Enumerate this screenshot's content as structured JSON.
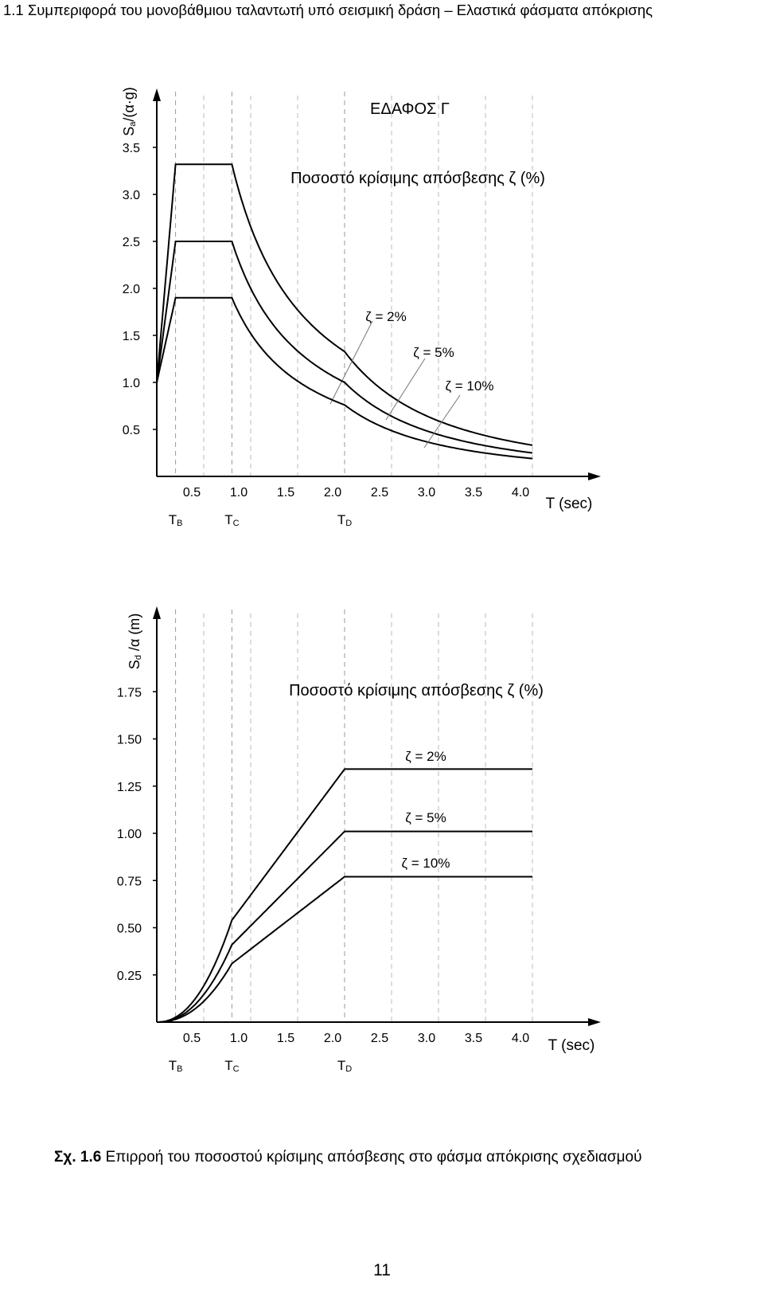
{
  "page": {
    "header": "1.1 Συμπεριφορά του μονοβάθμιου ταλαντωτή υπό σεισμική δράση – Ελαστικά φάσματα απόκρισης",
    "caption_label": "Σχ. 1.6",
    "caption_text": " Επιρροή του ποσοστού κρίσιμης απόσβεσης στο φάσμα απόκρισης σχεδιασμού",
    "page_number": "11"
  },
  "chart_data": [
    {
      "type": "line",
      "title": "ΕΔΑΦΟΣ Γ",
      "subtitle": "Ποσοστό κρίσιμης απόσβεσης ζ (%)",
      "ylabel_main": "S",
      "ylabel_sub": "a",
      "ylabel_rest": "/(α·g)",
      "xlabel": "T (sec)",
      "xlim": [
        0,
        4.0
      ],
      "ylim": [
        0,
        3.5
      ],
      "xticks": [
        "0.5",
        "1.0",
        "1.5",
        "2.0",
        "2.5",
        "3.0",
        "3.5",
        "4.0"
      ],
      "yticks": [
        "0.5",
        "1.0",
        "1.5",
        "2.0",
        "2.5",
        "3.0",
        "3.5"
      ],
      "vlines": [
        {
          "x": 0.2,
          "label_main": "T",
          "label_sub": "B"
        },
        {
          "x": 0.8,
          "label_main": "T",
          "label_sub": "C"
        },
        {
          "x": 2.0,
          "label_main": "T",
          "label_sub": "D"
        }
      ],
      "grid": false,
      "series": [
        {
          "name": "ζ = 2%",
          "x": [
            0,
            0.2,
            0.8,
            2.0,
            4.0
          ],
          "values": [
            1.0,
            3.32,
            3.32,
            1.33,
            0.34
          ]
        },
        {
          "name": "ζ = 5%",
          "x": [
            0,
            0.2,
            0.8,
            2.0,
            4.0
          ],
          "values": [
            1.0,
            2.5,
            2.5,
            1.0,
            0.25
          ]
        },
        {
          "name": "ζ = 10%",
          "x": [
            0,
            0.2,
            0.8,
            2.0,
            4.0
          ],
          "values": [
            1.0,
            1.9,
            1.9,
            0.76,
            0.19
          ]
        }
      ]
    },
    {
      "type": "line",
      "subtitle": "Ποσοστό κρίσιμης απόσβεσης ζ (%)",
      "ylabel_main": "S",
      "ylabel_sub": "d",
      "ylabel_rest": " /α (m)",
      "xlabel": "T (sec)",
      "xlim": [
        0,
        4.0
      ],
      "ylim": [
        0,
        1.75
      ],
      "xticks": [
        "0.5",
        "1.0",
        "1.5",
        "2.0",
        "2.5",
        "3.0",
        "3.5",
        "4.0"
      ],
      "yticks": [
        "0.25",
        "0.50",
        "0.75",
        "1.00",
        "1.25",
        "1.50",
        "1.75"
      ],
      "vlines": [
        {
          "x": 0.2,
          "label_main": "T",
          "label_sub": "B"
        },
        {
          "x": 0.8,
          "label_main": "T",
          "label_sub": "C"
        },
        {
          "x": 2.0,
          "label_main": "T",
          "label_sub": "D"
        }
      ],
      "grid": false,
      "series": [
        {
          "name": "ζ = 2%",
          "x": [
            0,
            0.2,
            0.8,
            2.0,
            4.0
          ],
          "values": [
            0.0,
            0.03,
            0.54,
            1.34,
            1.34
          ]
        },
        {
          "name": "ζ = 5%",
          "x": [
            0,
            0.2,
            0.8,
            2.0,
            4.0
          ],
          "values": [
            0.0,
            0.025,
            0.41,
            1.01,
            1.01
          ]
        },
        {
          "name": "ζ = 10%",
          "x": [
            0,
            0.2,
            0.8,
            2.0,
            4.0
          ],
          "values": [
            0.0,
            0.02,
            0.31,
            0.77,
            0.77
          ]
        }
      ]
    }
  ]
}
